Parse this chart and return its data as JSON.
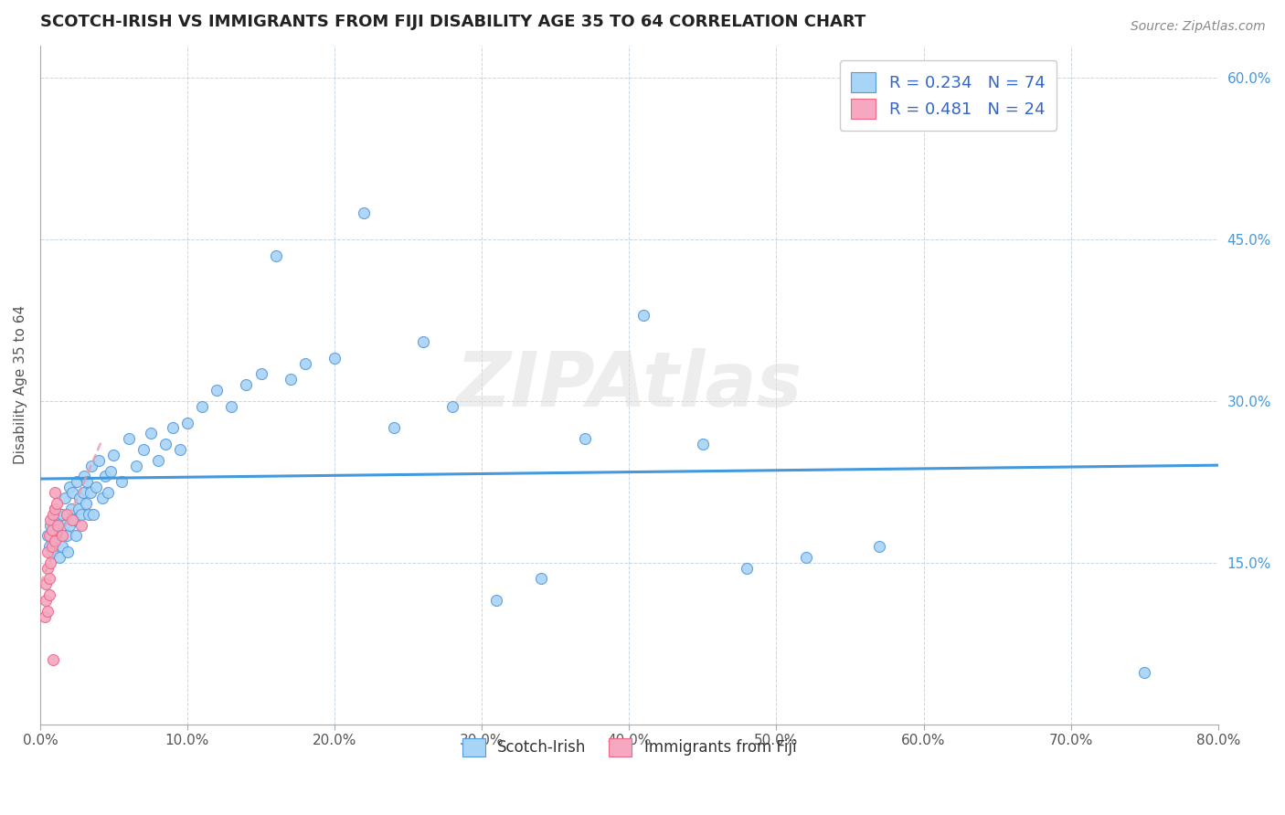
{
  "title": "SCOTCH-IRISH VS IMMIGRANTS FROM FIJI DISABILITY AGE 35 TO 64 CORRELATION CHART",
  "source": "Source: ZipAtlas.com",
  "ylabel": "Disability Age 35 to 64",
  "legend_label_1": "Scotch-Irish",
  "legend_label_2": "Immigrants from Fiji",
  "r1": 0.234,
  "n1": 74,
  "r2": 0.481,
  "n2": 24,
  "color1": "#A8D4F5",
  "color2": "#F5A8C0",
  "edge1": "#5599DD",
  "edge2": "#EE6688",
  "trendline1_color": "#4499DD",
  "trendline2_color": "#EE99AA",
  "watermark": "ZIPAtlas",
  "xmin": 0.0,
  "xmax": 0.8,
  "ymin": 0.0,
  "ymax": 0.63,
  "yticks": [
    0.15,
    0.3,
    0.45,
    0.6
  ],
  "ytick_labels": [
    "15.0%",
    "30.0%",
    "45.0%",
    "60.0%"
  ],
  "scotch_irish_x": [
    0.005,
    0.006,
    0.007,
    0.008,
    0.009,
    0.01,
    0.01,
    0.011,
    0.012,
    0.013,
    0.014,
    0.015,
    0.015,
    0.016,
    0.017,
    0.018,
    0.019,
    0.02,
    0.02,
    0.021,
    0.022,
    0.023,
    0.024,
    0.025,
    0.026,
    0.027,
    0.028,
    0.029,
    0.03,
    0.031,
    0.032,
    0.033,
    0.034,
    0.035,
    0.036,
    0.038,
    0.04,
    0.042,
    0.044,
    0.046,
    0.048,
    0.05,
    0.055,
    0.06,
    0.065,
    0.07,
    0.075,
    0.08,
    0.085,
    0.09,
    0.095,
    0.1,
    0.11,
    0.12,
    0.13,
    0.14,
    0.15,
    0.16,
    0.17,
    0.18,
    0.2,
    0.22,
    0.24,
    0.26,
    0.28,
    0.31,
    0.34,
    0.37,
    0.41,
    0.45,
    0.48,
    0.52,
    0.57,
    0.75
  ],
  "scotch_irish_y": [
    0.175,
    0.165,
    0.185,
    0.16,
    0.19,
    0.2,
    0.17,
    0.195,
    0.18,
    0.155,
    0.175,
    0.195,
    0.165,
    0.185,
    0.21,
    0.175,
    0.16,
    0.22,
    0.185,
    0.2,
    0.215,
    0.19,
    0.175,
    0.225,
    0.2,
    0.21,
    0.195,
    0.215,
    0.23,
    0.205,
    0.225,
    0.195,
    0.215,
    0.24,
    0.195,
    0.22,
    0.245,
    0.21,
    0.23,
    0.215,
    0.235,
    0.25,
    0.225,
    0.265,
    0.24,
    0.255,
    0.27,
    0.245,
    0.26,
    0.275,
    0.255,
    0.28,
    0.295,
    0.31,
    0.295,
    0.315,
    0.325,
    0.435,
    0.32,
    0.335,
    0.34,
    0.475,
    0.275,
    0.355,
    0.295,
    0.115,
    0.135,
    0.265,
    0.38,
    0.26,
    0.145,
    0.155,
    0.165,
    0.048
  ],
  "fiji_x": [
    0.003,
    0.004,
    0.004,
    0.005,
    0.005,
    0.005,
    0.006,
    0.006,
    0.006,
    0.007,
    0.007,
    0.008,
    0.008,
    0.009,
    0.009,
    0.01,
    0.01,
    0.01,
    0.011,
    0.012,
    0.015,
    0.018,
    0.022,
    0.028
  ],
  "fiji_y": [
    0.1,
    0.115,
    0.13,
    0.105,
    0.145,
    0.16,
    0.12,
    0.175,
    0.135,
    0.19,
    0.15,
    0.165,
    0.18,
    0.06,
    0.195,
    0.2,
    0.215,
    0.17,
    0.205,
    0.185,
    0.175,
    0.195,
    0.19,
    0.185
  ]
}
